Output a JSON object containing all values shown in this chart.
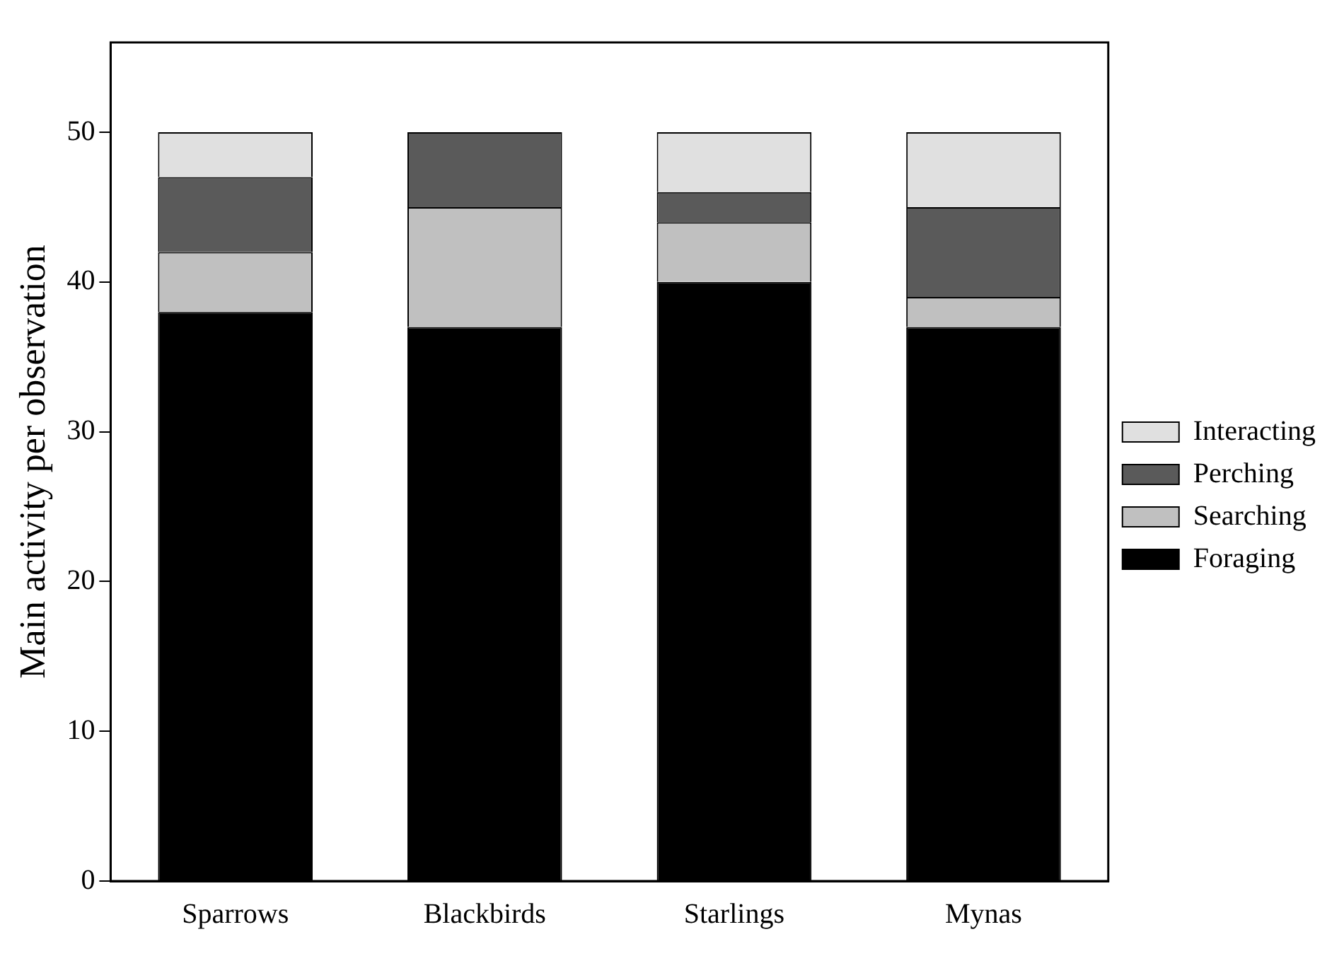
{
  "chart_data": {
    "type": "bar",
    "stacked": true,
    "ylabel": "Main activity per observation",
    "categories": [
      "Sparrows",
      "Blackbirds",
      "Starlings",
      "Mynas"
    ],
    "series": [
      {
        "name": "Foraging",
        "color": "#000000",
        "values": [
          38,
          37,
          40,
          37
        ]
      },
      {
        "name": "Searching",
        "color": "#c0c0c0",
        "values": [
          4,
          8,
          4,
          2
        ]
      },
      {
        "name": "Perching",
        "color": "#5a5a5a",
        "values": [
          5,
          5,
          2,
          6
        ]
      },
      {
        "name": "Interacting",
        "color": "#e0e0e0",
        "values": [
          3,
          0,
          4,
          5
        ]
      }
    ],
    "ylim": [
      0,
      56
    ],
    "yticks": [
      0,
      10,
      20,
      30,
      40,
      50
    ],
    "grid": false,
    "legend": "right"
  }
}
